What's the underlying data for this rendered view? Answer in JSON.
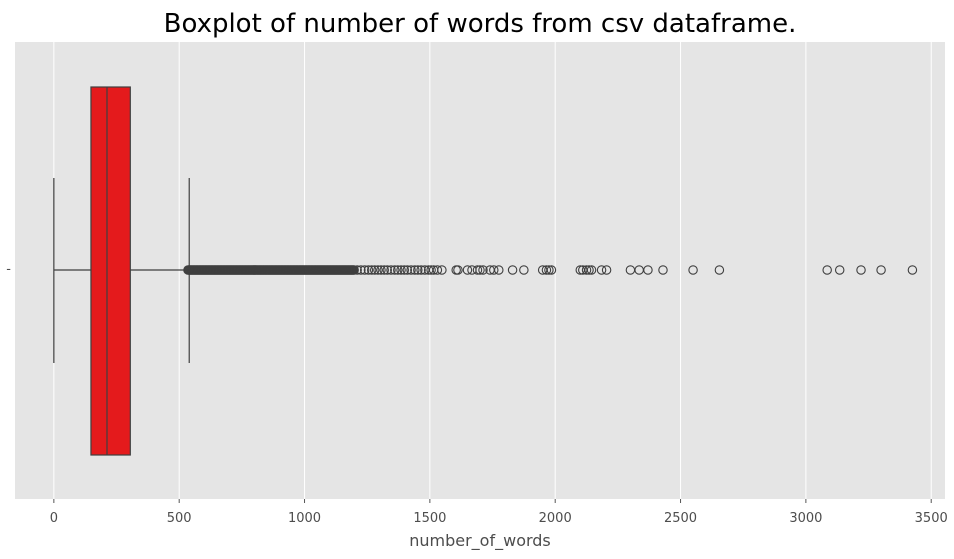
{
  "chart_data": {
    "type": "boxplot",
    "orientation": "horizontal",
    "title": "Boxplot of number of words from csv dataframe.",
    "xlabel": "number_of_words",
    "ylabel": "",
    "xlim": [
      -155,
      3555
    ],
    "xticks": [
      0,
      500,
      1000,
      1500,
      2000,
      2500,
      3000,
      3500
    ],
    "xtick_labels": [
      "0",
      "500",
      "1000",
      "1500",
      "2000",
      "2500",
      "3000",
      "3500"
    ],
    "grid": true,
    "style": "ggplot",
    "box": {
      "whisker_low": 0,
      "q1": 148,
      "median": 212,
      "q3": 305,
      "whisker_high": 540,
      "color": "#e41a1c",
      "edge_color": "#3f3f3f"
    },
    "outliers_dense_range": [
      535,
      1200
    ],
    "outliers": [
      1210,
      1225,
      1240,
      1255,
      1268,
      1280,
      1293,
      1305,
      1318,
      1330,
      1345,
      1360,
      1372,
      1385,
      1398,
      1410,
      1425,
      1440,
      1452,
      1465,
      1480,
      1495,
      1505,
      1515,
      1530,
      1548,
      1605,
      1612,
      1650,
      1668,
      1690,
      1700,
      1712,
      1740,
      1755,
      1775,
      1830,
      1875,
      1950,
      1965,
      1975,
      1985,
      2100,
      2110,
      2125,
      2135,
      2145,
      2185,
      2205,
      2300,
      2335,
      2370,
      2430,
      2550,
      2655,
      3085,
      3135,
      3220,
      3300,
      3425
    ]
  }
}
